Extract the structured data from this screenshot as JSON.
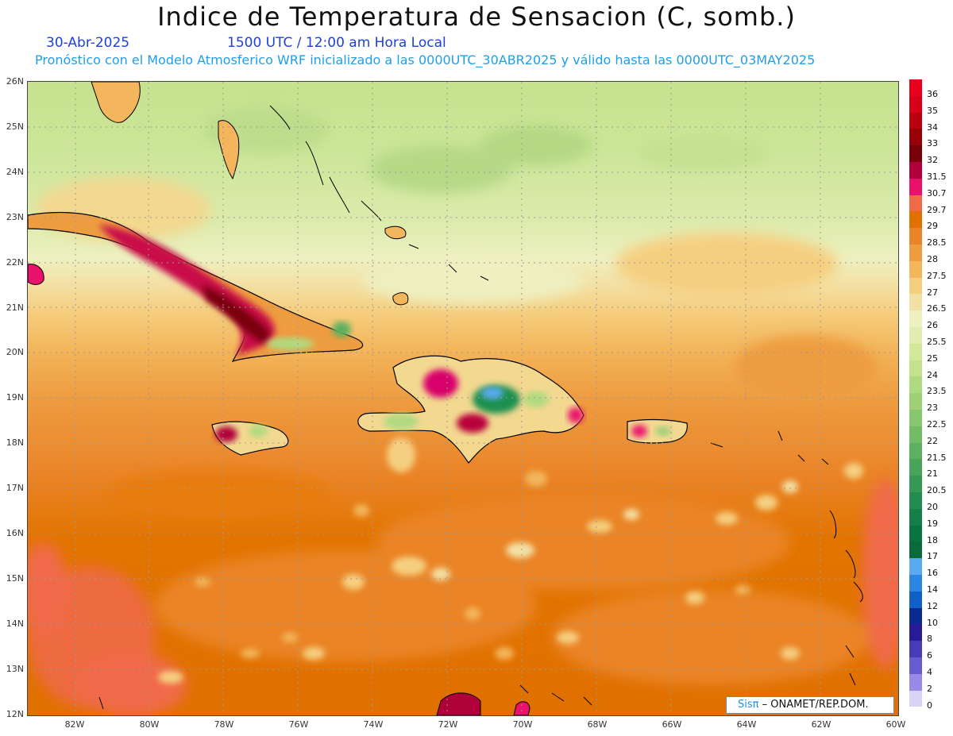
{
  "title": "Indice de Temperatura de Sensacion (C, somb.)",
  "date": "30-Abr-2025",
  "time": "1500 UTC / 12:00 am Hora Local",
  "model_info": "Pronóstico con el Modelo Atmosferico WRF inicializado a las 0000UTC_30ABR2025 y válido hasta las  0000UTC_03MAY2025",
  "credit": {
    "sis": "Sisπ",
    "rest": " – ONAMET/REP.DOM."
  },
  "latitudes": [
    "26N",
    "25N",
    "24N",
    "23N",
    "22N",
    "21N",
    "20N",
    "19N",
    "18N",
    "17N",
    "16N",
    "15N",
    "14N",
    "13N",
    "12N"
  ],
  "longitudes": [
    "82W",
    "80W",
    "78W",
    "76W",
    "74W",
    "72W",
    "70W",
    "68W",
    "66W",
    "64W",
    "62W",
    "60W"
  ],
  "colorbar": [
    {
      "label": "36",
      "color": "#e8001a"
    },
    {
      "label": "35",
      "color": "#d80018"
    },
    {
      "label": "34",
      "color": "#b80010"
    },
    {
      "label": "33",
      "color": "#980008"
    },
    {
      "label": "32",
      "color": "#78000a"
    },
    {
      "label": "31.5",
      "color": "#b0003a"
    },
    {
      "label": "30.7",
      "color": "#e8126a"
    },
    {
      "label": "29.7",
      "color": "#f06a4a"
    },
    {
      "label": "29",
      "color": "#e07000"
    },
    {
      "label": "28.5",
      "color": "#ea8428"
    },
    {
      "label": "28",
      "color": "#ee9c40"
    },
    {
      "label": "27.5",
      "color": "#f3b65c"
    },
    {
      "label": "27",
      "color": "#f5cf80"
    },
    {
      "label": "26.5",
      "color": "#f3e0a4"
    },
    {
      "label": "26",
      "color": "#eef0c0"
    },
    {
      "label": "25.5",
      "color": "#e2ecb0"
    },
    {
      "label": "25",
      "color": "#d2e89a"
    },
    {
      "label": "24",
      "color": "#c2e28c"
    },
    {
      "label": "23.5",
      "color": "#b0da80"
    },
    {
      "label": "23",
      "color": "#9ed078"
    },
    {
      "label": "22.5",
      "color": "#88c670"
    },
    {
      "label": "22",
      "color": "#72bc66"
    },
    {
      "label": "21.5",
      "color": "#5cb060"
    },
    {
      "label": "21",
      "color": "#48a45a"
    },
    {
      "label": "20.5",
      "color": "#369854"
    },
    {
      "label": "20",
      "color": "#248c4e"
    },
    {
      "label": "19",
      "color": "#148048"
    },
    {
      "label": "18",
      "color": "#087440"
    },
    {
      "label": "17",
      "color": "#0a6a3a"
    },
    {
      "label": "16",
      "color": "#5aaaf0"
    },
    {
      "label": "14",
      "color": "#2a86e0"
    },
    {
      "label": "12",
      "color": "#1060c8"
    },
    {
      "label": "10",
      "color": "#0a2a90"
    },
    {
      "label": "8",
      "color": "#2a1a98"
    },
    {
      "label": "6",
      "color": "#4a3ab8"
    },
    {
      "label": "4",
      "color": "#6a5ad0"
    },
    {
      "label": "2",
      "color": "#9a8ae8"
    },
    {
      "label": "0",
      "color": "#d8d4f8"
    }
  ]
}
